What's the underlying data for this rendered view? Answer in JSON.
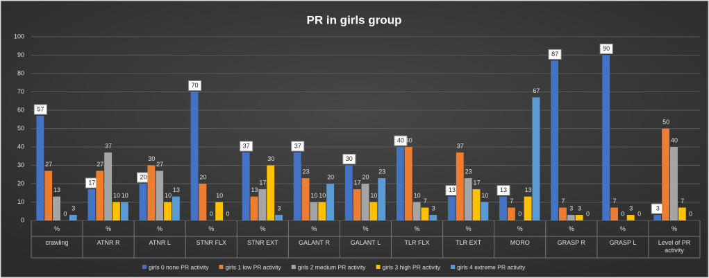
{
  "chart_data": {
    "type": "bar",
    "title": "PR in girls group",
    "category_unit": "%",
    "categories": [
      "crawling",
      "ATNR R",
      "ATNR L",
      "STNR FLX",
      "STNR EXT",
      "GALANT R",
      "GALANT L",
      "TLR FLX",
      "TLR EXT",
      "MORO",
      "GRASP R",
      "GRASP L",
      "Level of PR activity"
    ],
    "series": [
      {
        "name": "girls 0 none PR activity",
        "color": "#4472c4",
        "values": [
          57,
          17,
          20,
          70,
          37,
          37,
          30,
          40,
          13,
          13,
          87,
          90,
          3
        ]
      },
      {
        "name": "girls 1 low PR activity",
        "color": "#ed7d31",
        "values": [
          27,
          27,
          30,
          20,
          13,
          23,
          17,
          40,
          37,
          7,
          7,
          7,
          50
        ]
      },
      {
        "name": "girls 2 medium PR activity",
        "color": "#a5a5a5",
        "values": [
          13,
          37,
          27,
          0,
          17,
          10,
          20,
          10,
          23,
          0,
          3,
          0,
          40
        ]
      },
      {
        "name": "girls 3 high PR activity",
        "color": "#ffc000",
        "values": [
          0,
          10,
          10,
          10,
          30,
          10,
          10,
          7,
          17,
          13,
          3,
          3,
          7
        ]
      },
      {
        "name": "girls 4 extreme PR activity",
        "color": "#5b9bd5",
        "values": [
          3,
          10,
          13,
          0,
          3,
          20,
          23,
          3,
          10,
          67,
          0,
          0,
          0
        ]
      }
    ],
    "ylim": [
      0,
      100
    ],
    "yticks": [
      0,
      10,
      20,
      30,
      40,
      50,
      60,
      70,
      80,
      90,
      100
    ],
    "grid": true,
    "legend": "bottom"
  }
}
